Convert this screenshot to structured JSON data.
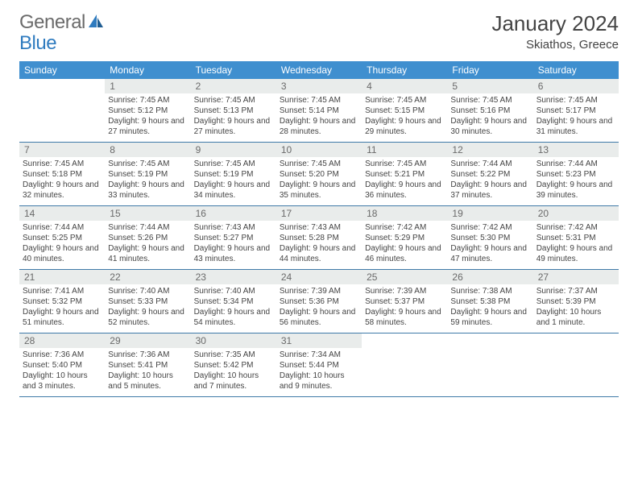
{
  "logo": {
    "part1": "General",
    "part2": "Blue"
  },
  "title": "January 2024",
  "location": "Skiathos, Greece",
  "weekdays": [
    "Sunday",
    "Monday",
    "Tuesday",
    "Wednesday",
    "Thursday",
    "Friday",
    "Saturday"
  ],
  "colors": {
    "header_bg": "#3f8fcf",
    "header_text": "#ffffff",
    "daynum_bg": "#e9eceb",
    "daynum_text": "#6a6a6a",
    "row_border": "#3f7aa8",
    "logo_gray": "#6b6b6b",
    "logo_blue": "#2f7bbf"
  },
  "weeks": [
    [
      {
        "num": "",
        "sunrise": "",
        "sunset": "",
        "daylight": ""
      },
      {
        "num": "1",
        "sunrise": "Sunrise: 7:45 AM",
        "sunset": "Sunset: 5:12 PM",
        "daylight": "Daylight: 9 hours and 27 minutes."
      },
      {
        "num": "2",
        "sunrise": "Sunrise: 7:45 AM",
        "sunset": "Sunset: 5:13 PM",
        "daylight": "Daylight: 9 hours and 27 minutes."
      },
      {
        "num": "3",
        "sunrise": "Sunrise: 7:45 AM",
        "sunset": "Sunset: 5:14 PM",
        "daylight": "Daylight: 9 hours and 28 minutes."
      },
      {
        "num": "4",
        "sunrise": "Sunrise: 7:45 AM",
        "sunset": "Sunset: 5:15 PM",
        "daylight": "Daylight: 9 hours and 29 minutes."
      },
      {
        "num": "5",
        "sunrise": "Sunrise: 7:45 AM",
        "sunset": "Sunset: 5:16 PM",
        "daylight": "Daylight: 9 hours and 30 minutes."
      },
      {
        "num": "6",
        "sunrise": "Sunrise: 7:45 AM",
        "sunset": "Sunset: 5:17 PM",
        "daylight": "Daylight: 9 hours and 31 minutes."
      }
    ],
    [
      {
        "num": "7",
        "sunrise": "Sunrise: 7:45 AM",
        "sunset": "Sunset: 5:18 PM",
        "daylight": "Daylight: 9 hours and 32 minutes."
      },
      {
        "num": "8",
        "sunrise": "Sunrise: 7:45 AM",
        "sunset": "Sunset: 5:19 PM",
        "daylight": "Daylight: 9 hours and 33 minutes."
      },
      {
        "num": "9",
        "sunrise": "Sunrise: 7:45 AM",
        "sunset": "Sunset: 5:19 PM",
        "daylight": "Daylight: 9 hours and 34 minutes."
      },
      {
        "num": "10",
        "sunrise": "Sunrise: 7:45 AM",
        "sunset": "Sunset: 5:20 PM",
        "daylight": "Daylight: 9 hours and 35 minutes."
      },
      {
        "num": "11",
        "sunrise": "Sunrise: 7:45 AM",
        "sunset": "Sunset: 5:21 PM",
        "daylight": "Daylight: 9 hours and 36 minutes."
      },
      {
        "num": "12",
        "sunrise": "Sunrise: 7:44 AM",
        "sunset": "Sunset: 5:22 PM",
        "daylight": "Daylight: 9 hours and 37 minutes."
      },
      {
        "num": "13",
        "sunrise": "Sunrise: 7:44 AM",
        "sunset": "Sunset: 5:23 PM",
        "daylight": "Daylight: 9 hours and 39 minutes."
      }
    ],
    [
      {
        "num": "14",
        "sunrise": "Sunrise: 7:44 AM",
        "sunset": "Sunset: 5:25 PM",
        "daylight": "Daylight: 9 hours and 40 minutes."
      },
      {
        "num": "15",
        "sunrise": "Sunrise: 7:44 AM",
        "sunset": "Sunset: 5:26 PM",
        "daylight": "Daylight: 9 hours and 41 minutes."
      },
      {
        "num": "16",
        "sunrise": "Sunrise: 7:43 AM",
        "sunset": "Sunset: 5:27 PM",
        "daylight": "Daylight: 9 hours and 43 minutes."
      },
      {
        "num": "17",
        "sunrise": "Sunrise: 7:43 AM",
        "sunset": "Sunset: 5:28 PM",
        "daylight": "Daylight: 9 hours and 44 minutes."
      },
      {
        "num": "18",
        "sunrise": "Sunrise: 7:42 AM",
        "sunset": "Sunset: 5:29 PM",
        "daylight": "Daylight: 9 hours and 46 minutes."
      },
      {
        "num": "19",
        "sunrise": "Sunrise: 7:42 AM",
        "sunset": "Sunset: 5:30 PM",
        "daylight": "Daylight: 9 hours and 47 minutes."
      },
      {
        "num": "20",
        "sunrise": "Sunrise: 7:42 AM",
        "sunset": "Sunset: 5:31 PM",
        "daylight": "Daylight: 9 hours and 49 minutes."
      }
    ],
    [
      {
        "num": "21",
        "sunrise": "Sunrise: 7:41 AM",
        "sunset": "Sunset: 5:32 PM",
        "daylight": "Daylight: 9 hours and 51 minutes."
      },
      {
        "num": "22",
        "sunrise": "Sunrise: 7:40 AM",
        "sunset": "Sunset: 5:33 PM",
        "daylight": "Daylight: 9 hours and 52 minutes."
      },
      {
        "num": "23",
        "sunrise": "Sunrise: 7:40 AM",
        "sunset": "Sunset: 5:34 PM",
        "daylight": "Daylight: 9 hours and 54 minutes."
      },
      {
        "num": "24",
        "sunrise": "Sunrise: 7:39 AM",
        "sunset": "Sunset: 5:36 PM",
        "daylight": "Daylight: 9 hours and 56 minutes."
      },
      {
        "num": "25",
        "sunrise": "Sunrise: 7:39 AM",
        "sunset": "Sunset: 5:37 PM",
        "daylight": "Daylight: 9 hours and 58 minutes."
      },
      {
        "num": "26",
        "sunrise": "Sunrise: 7:38 AM",
        "sunset": "Sunset: 5:38 PM",
        "daylight": "Daylight: 9 hours and 59 minutes."
      },
      {
        "num": "27",
        "sunrise": "Sunrise: 7:37 AM",
        "sunset": "Sunset: 5:39 PM",
        "daylight": "Daylight: 10 hours and 1 minute."
      }
    ],
    [
      {
        "num": "28",
        "sunrise": "Sunrise: 7:36 AM",
        "sunset": "Sunset: 5:40 PM",
        "daylight": "Daylight: 10 hours and 3 minutes."
      },
      {
        "num": "29",
        "sunrise": "Sunrise: 7:36 AM",
        "sunset": "Sunset: 5:41 PM",
        "daylight": "Daylight: 10 hours and 5 minutes."
      },
      {
        "num": "30",
        "sunrise": "Sunrise: 7:35 AM",
        "sunset": "Sunset: 5:42 PM",
        "daylight": "Daylight: 10 hours and 7 minutes."
      },
      {
        "num": "31",
        "sunrise": "Sunrise: 7:34 AM",
        "sunset": "Sunset: 5:44 PM",
        "daylight": "Daylight: 10 hours and 9 minutes."
      },
      {
        "num": "",
        "sunrise": "",
        "sunset": "",
        "daylight": ""
      },
      {
        "num": "",
        "sunrise": "",
        "sunset": "",
        "daylight": ""
      },
      {
        "num": "",
        "sunrise": "",
        "sunset": "",
        "daylight": ""
      }
    ]
  ]
}
